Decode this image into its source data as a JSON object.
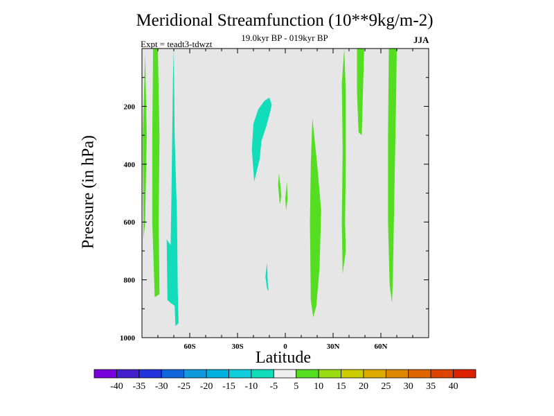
{
  "chart_data": {
    "type": "heatmap",
    "title": "Meridional Streamfunction (10**9kg/m-2)",
    "subtitle": "19.0kyr BP - 019kyr BP",
    "left_label": "Expt = teadt3-tdwzt",
    "right_label": "JJA",
    "xlabel": "Latitude",
    "ylabel": "Pressure (in hPa)",
    "xlim": [
      -90,
      90
    ],
    "ylim": [
      1000,
      0
    ],
    "x_ticks": [
      {
        "value": -60,
        "label": "60S"
      },
      {
        "value": -30,
        "label": "30S"
      },
      {
        "value": 0,
        "label": "0"
      },
      {
        "value": 30,
        "label": "30N"
      },
      {
        "value": 60,
        "label": "60N"
      }
    ],
    "y_ticks": [
      {
        "value": 200,
        "label": "200"
      },
      {
        "value": 400,
        "label": "400"
      },
      {
        "value": 600,
        "label": "600"
      },
      {
        "value": 800,
        "label": "800"
      },
      {
        "value": 1000,
        "label": "1000"
      }
    ],
    "background_color": "#e6e6e6",
    "regions": [
      {
        "name": "positive-5-10",
        "color": "#55dd22",
        "points": [
          [
            -88,
            15
          ],
          [
            -87,
            300
          ],
          [
            -88,
            600
          ],
          [
            -89,
            660
          ],
          [
            -89.5,
            300
          ]
        ]
      },
      {
        "name": "positive-5-10",
        "color": "#55dd22",
        "points": [
          [
            -83,
            0
          ],
          [
            -80,
            0
          ],
          [
            -79,
            300
          ],
          [
            -79.5,
            600
          ],
          [
            -79,
            850
          ],
          [
            -82,
            860
          ],
          [
            -83.5,
            600
          ],
          [
            -83.5,
            300
          ]
        ]
      },
      {
        "name": "negative-10-5",
        "color": "#11ddbb",
        "points": [
          [
            -70,
            0
          ],
          [
            -69.5,
            300
          ],
          [
            -68,
            580
          ],
          [
            -67.5,
            850
          ],
          [
            -67,
            950
          ],
          [
            -69,
            960
          ],
          [
            -69.5,
            890
          ],
          [
            -72,
            880
          ],
          [
            -74,
            870
          ],
          [
            -74.5,
            660
          ],
          [
            -72,
            680
          ],
          [
            -71.5,
            500
          ],
          [
            -71,
            300
          ],
          [
            -70.5,
            100
          ]
        ]
      },
      {
        "name": "negative-10-5",
        "color": "#11ddbb",
        "points": [
          [
            -10,
            170
          ],
          [
            -8.5,
            195
          ],
          [
            -10,
            230
          ],
          [
            -12,
            270
          ],
          [
            -15,
            320
          ],
          [
            -16,
            380
          ],
          [
            -19.5,
            460
          ],
          [
            -21,
            350
          ],
          [
            -20,
            260
          ],
          [
            -17,
            210
          ],
          [
            -13,
            180
          ]
        ]
      },
      {
        "name": "positive-5-10",
        "color": "#55dd22",
        "points": [
          [
            -4,
            430
          ],
          [
            -3,
            480
          ],
          [
            -2.5,
            510
          ],
          [
            -3.5,
            540
          ],
          [
            -4.5,
            470
          ]
        ]
      },
      {
        "name": "positive-5-10",
        "color": "#55dd22",
        "points": [
          [
            1,
            460
          ],
          [
            1.5,
            520
          ],
          [
            0.5,
            560
          ],
          [
            0,
            520
          ]
        ]
      },
      {
        "name": "negative-10-5",
        "color": "#11ddbb",
        "points": [
          [
            -11.5,
            740
          ],
          [
            -11,
            810
          ],
          [
            -10.5,
            840
          ],
          [
            -11.5,
            830
          ],
          [
            -12.5,
            790
          ]
        ]
      },
      {
        "name": "positive-5-10",
        "color": "#55dd22",
        "points": [
          [
            17,
            240
          ],
          [
            20,
            400
          ],
          [
            22.5,
            560
          ],
          [
            21.5,
            760
          ],
          [
            19.5,
            890
          ],
          [
            17.5,
            930
          ],
          [
            16,
            870
          ],
          [
            15.5,
            600
          ],
          [
            16,
            400
          ]
        ]
      },
      {
        "name": "positive-5-10",
        "color": "#55dd22",
        "points": [
          [
            37,
            0
          ],
          [
            38,
            150
          ],
          [
            38,
            400
          ],
          [
            37.5,
            600
          ],
          [
            38,
            700
          ],
          [
            36,
            780
          ],
          [
            35.5,
            600
          ],
          [
            36,
            350
          ],
          [
            35.5,
            120
          ]
        ]
      },
      {
        "name": "positive-5-10",
        "color": "#55dd22",
        "points": [
          [
            45,
            0
          ],
          [
            49.5,
            0
          ],
          [
            49,
            100
          ],
          [
            48,
            300
          ],
          [
            46,
            290
          ],
          [
            45,
            150
          ]
        ]
      },
      {
        "name": "positive-5-10",
        "color": "#55dd22",
        "points": [
          [
            65,
            0
          ],
          [
            70,
            0
          ],
          [
            69.5,
            200
          ],
          [
            68.5,
            500
          ],
          [
            67.5,
            800
          ],
          [
            67,
            880
          ],
          [
            65.5,
            820
          ],
          [
            64.5,
            600
          ],
          [
            64.5,
            300
          ]
        ]
      }
    ],
    "colorbar": {
      "labels": [
        "-40",
        "-35",
        "-30",
        "-25",
        "-20",
        "-15",
        "-10",
        "-5",
        "5",
        "10",
        "15",
        "20",
        "25",
        "30",
        "35",
        "40"
      ],
      "colors": [
        "#7700dd",
        "#4420cc",
        "#2233dd",
        "#1166dd",
        "#1199dd",
        "#00b0dd",
        "#11ccdd",
        "#11ddbb",
        "#eeeeee",
        "#55dd22",
        "#99dd11",
        "#cccc00",
        "#ddaa00",
        "#dd8800",
        "#dd6600",
        "#dd4400",
        "#dd2200"
      ]
    }
  }
}
